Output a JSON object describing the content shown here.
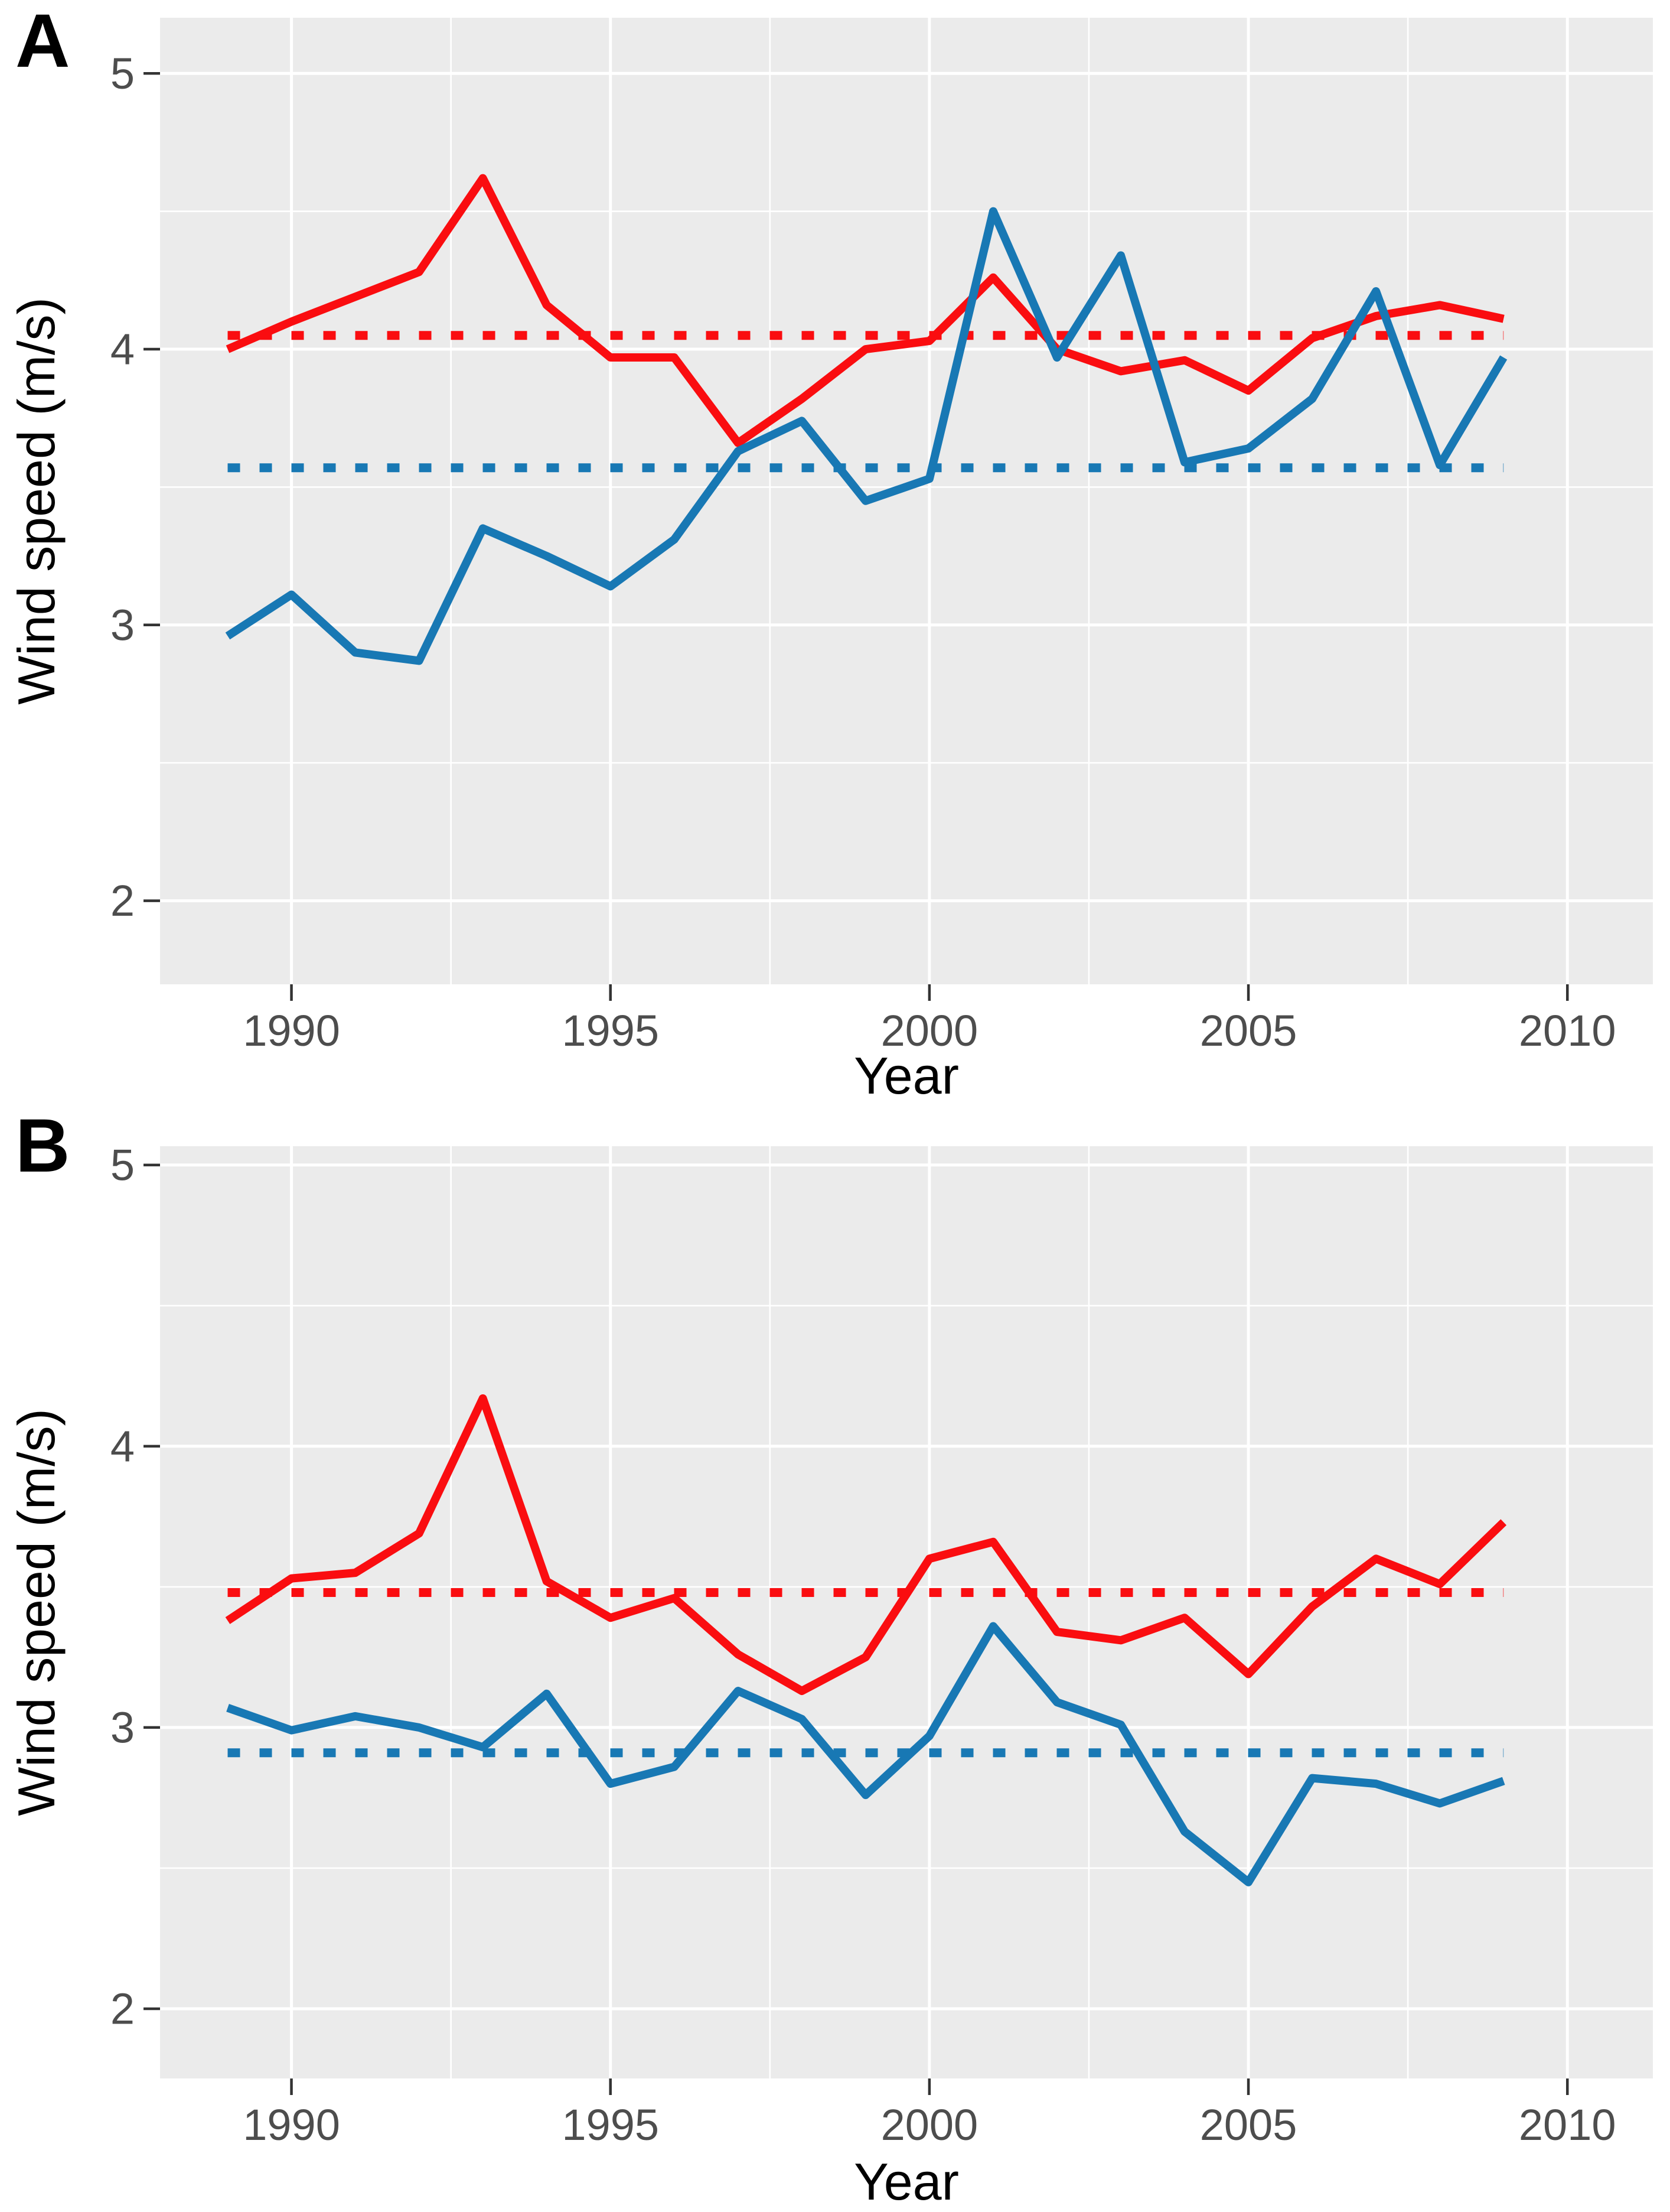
{
  "figure": {
    "panels": [
      {
        "tag": "A"
      },
      {
        "tag": "B"
      }
    ]
  },
  "chart_data": [
    {
      "type": "line",
      "tag": "A",
      "title": "",
      "xlabel": "Year",
      "ylabel": "Wind speed (m/s)",
      "x": [
        1989,
        1990,
        1991,
        1992,
        1993,
        1994,
        1995,
        1996,
        1997,
        1998,
        1999,
        2000,
        2001,
        2002,
        2003,
        2004,
        2005,
        2006,
        2007,
        2008,
        2009
      ],
      "series": [
        {
          "name": "red-series",
          "color": "#FA0D10",
          "values": [
            4.0,
            4.1,
            4.19,
            4.28,
            4.62,
            4.16,
            3.97,
            3.97,
            3.66,
            3.82,
            4.0,
            4.03,
            4.26,
            4.0,
            3.92,
            3.96,
            3.85,
            4.04,
            4.12,
            4.16,
            4.11
          ],
          "mean_line": 4.05
        },
        {
          "name": "blue-series",
          "color": "#1878B4",
          "values": [
            2.96,
            3.11,
            2.9,
            2.87,
            3.35,
            3.25,
            3.14,
            3.31,
            3.63,
            3.74,
            3.45,
            3.53,
            4.5,
            3.97,
            4.34,
            3.59,
            3.64,
            3.82,
            4.21,
            3.58,
            3.97
          ],
          "mean_line": 3.57
        }
      ],
      "x_ticks": [
        1990,
        1995,
        2000,
        2005,
        2010
      ],
      "y_ticks": [
        5,
        4,
        3,
        2
      ],
      "x_minor": [
        1992.5,
        1997.5,
        2002.5,
        2007.5
      ],
      "y_minor": [
        4.5,
        3.5,
        2.5
      ],
      "xlim": [
        1987.94,
        2011.34
      ],
      "ylim": [
        1.697,
        5.202
      ],
      "grid": "on",
      "legend": "none",
      "panel_bg": "#EBEBEB",
      "grid_color": "#FFFFFF",
      "tick_color": "#333333",
      "tick_label_color": "#4D4D4D"
    },
    {
      "type": "line",
      "tag": "B",
      "title": "",
      "xlabel": "Year",
      "ylabel": "Wind speed (m/s)",
      "x": [
        1989,
        1990,
        1991,
        1992,
        1993,
        1994,
        1995,
        1996,
        1997,
        1998,
        1999,
        2000,
        2001,
        2002,
        2003,
        2004,
        2005,
        2006,
        2007,
        2008,
        2009
      ],
      "series": [
        {
          "name": "red-series",
          "color": "#FA0D10",
          "values": [
            3.38,
            3.53,
            3.55,
            3.69,
            4.17,
            3.52,
            3.39,
            3.46,
            3.26,
            3.13,
            3.25,
            3.6,
            3.66,
            3.34,
            3.31,
            3.39,
            3.19,
            3.43,
            3.6,
            3.51,
            3.73
          ],
          "mean_line": 3.48
        },
        {
          "name": "blue-series",
          "color": "#1878B4",
          "values": [
            3.07,
            2.99,
            3.04,
            3.0,
            2.93,
            3.12,
            2.8,
            2.86,
            3.13,
            3.03,
            2.76,
            2.97,
            3.36,
            3.09,
            3.01,
            2.63,
            2.45,
            2.82,
            2.8,
            2.73,
            2.81
          ],
          "mean_line": 2.91
        }
      ],
      "x_ticks": [
        1990,
        1995,
        2000,
        2005,
        2010
      ],
      "y_ticks": [
        5,
        4,
        3,
        2
      ],
      "x_minor": [
        1992.5,
        1997.5,
        2002.5,
        2007.5
      ],
      "y_minor": [
        4.5,
        3.5,
        2.5
      ],
      "xlim": [
        1987.94,
        2011.34
      ],
      "ylim": [
        1.752,
        5.067
      ],
      "grid": "on",
      "legend": "none",
      "panel_bg": "#EBEBEB",
      "grid_color": "#FFFFFF",
      "tick_color": "#333333",
      "tick_label_color": "#4D4D4D"
    }
  ]
}
